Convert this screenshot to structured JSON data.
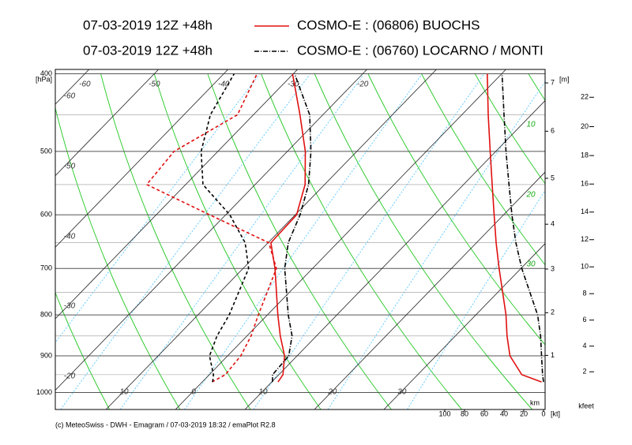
{
  "chart_data": {
    "type": "emagram",
    "y_label": "[hPa]",
    "log_y": true,
    "ylim": [
      1050,
      395
    ],
    "yticks": [
      400,
      500,
      600,
      700,
      800,
      900,
      1000
    ],
    "xlim": [
      -17.3,
      53.2
    ],
    "xticks": [
      {
        "value": -10,
        "label": "10"
      },
      0,
      10,
      20,
      30
    ],
    "top_ticks": [
      -60,
      -50,
      -40,
      -30,
      -20
    ],
    "side_labels": [
      -60,
      -50,
      -40,
      -30,
      -20
    ],
    "mixing_labels": [
      10,
      20,
      30
    ],
    "km_label": "[m]",
    "km_unit": "km",
    "km_ticks": [
      1,
      2,
      3,
      4,
      5,
      6,
      7
    ],
    "kfeet_unit": "kfeet",
    "kfeet_ticks": [
      2,
      4,
      6,
      8,
      10,
      12,
      14,
      16,
      18,
      20,
      22
    ],
    "wind_unit": "[kt]",
    "wind_xlim": [
      100,
      0
    ],
    "wind_xticks": [
      100,
      80,
      60,
      40,
      20,
      0
    ],
    "footer": "(c) MeteoSwiss - DWH - Emagram / 07-03-2019  18:32 / emaPlot R2.8",
    "pressure": [
      970,
      950,
      900,
      850,
      800,
      700,
      650,
      600,
      550,
      500,
      450,
      400
    ],
    "series": [
      {
        "run": "07-03-2019  12Z +48h",
        "name": "COSMO-E : (06806)  BUOCHS",
        "color": "#e01010",
        "line_style": "solid",
        "temperature": [
          10.9,
          10.6,
          8.2,
          4.8,
          1.5,
          -5.4,
          -9.6,
          -9.8,
          -12.8,
          -17.4,
          -23.3,
          -30.1
        ],
        "dewpoint": [
          1.4,
          2.3,
          1.9,
          0.6,
          -1.3,
          -5.2,
          -9.9,
          -22.3,
          -35.6,
          -36.3,
          -32.3,
          -35.2
        ],
        "wind_speed": [
          2,
          22,
          34,
          37,
          38,
          45,
          48,
          50,
          52,
          54,
          56,
          57
        ]
      },
      {
        "run": "07-03-2019  12Z +48h",
        "name": "COSMO-E : (06760)  LOCARNO / MONTI",
        "color": "#000000",
        "line_style": "dashdot",
        "temperature": [
          10.1,
          9.1,
          8.8,
          6.5,
          3,
          -4,
          -7.1,
          -9.3,
          -12.3,
          -16.6,
          -21.9,
          -29.8
        ],
        "dewpoint": [
          1.5,
          0.6,
          -2.6,
          -4.3,
          -5.5,
          -9.2,
          -13.3,
          -19.4,
          -27.5,
          -32.4,
          -36.2,
          -38.5
        ],
        "wind_speed": [
          0,
          1,
          2,
          3,
          6,
          22,
          28,
          32,
          35,
          38,
          40,
          42
        ]
      }
    ]
  }
}
